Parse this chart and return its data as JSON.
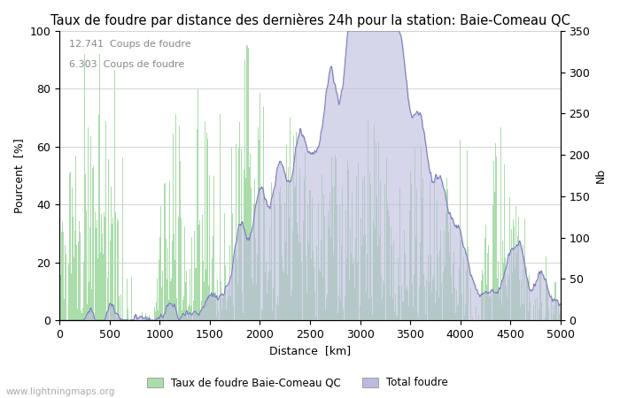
{
  "title": "Taux de foudre par distance des dernières 24h pour la station: Baie-Comeau QC",
  "xlabel": "Distance  [km]",
  "ylabel_left": "Pourcent  [%]",
  "ylabel_right": "Nb",
  "annotation1": "12.741  Coups de foudre",
  "annotation2": "6.303  Coups de foudre",
  "xlim": [
    0,
    5000
  ],
  "ylim_left": [
    0,
    100
  ],
  "ylim_right": [
    0,
    350
  ],
  "xticks": [
    0,
    500,
    1000,
    1500,
    2000,
    2500,
    3000,
    3500,
    4000,
    4500,
    5000
  ],
  "yticks_left": [
    0,
    20,
    40,
    60,
    80,
    100
  ],
  "yticks_right": [
    0,
    50,
    100,
    150,
    200,
    250,
    300,
    350
  ],
  "bar_color": "#aaddaa",
  "bar_edge_color": "#aaddaa",
  "line_color": "#7777bb",
  "line_fill_color": "#bbbbdd",
  "background_color": "#ffffff",
  "grid_color": "#cccccc",
  "legend_bar_label": "Taux de foudre Baie-Comeau QC",
  "legend_line_label": "Total foudre",
  "watermark": "www.lightningmaps.org",
  "title_fontsize": 10.5,
  "axis_fontsize": 9,
  "tick_fontsize": 9,
  "annot_fontsize": 8,
  "num_bins": 1000,
  "seed": 137
}
